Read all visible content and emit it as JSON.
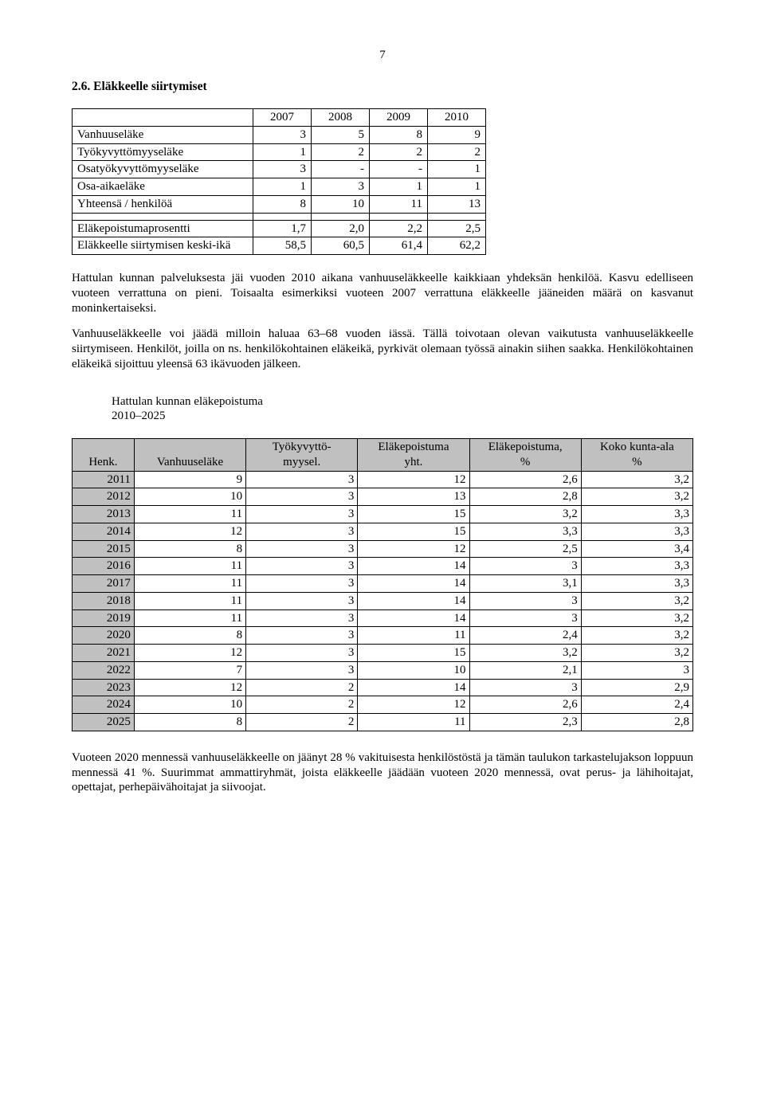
{
  "page_number": "7",
  "heading": "2.6. Eläkkeelle siirtymiset",
  "table1": {
    "header": [
      "",
      "2007",
      "2008",
      "2009",
      "2010"
    ],
    "rows_a": [
      [
        "Vanhuuseläke",
        "3",
        "5",
        "8",
        "9"
      ],
      [
        "Työkyvyttömyyseläke",
        "1",
        "2",
        "2",
        "2"
      ],
      [
        "Osatyökyvyttömyyseläke",
        "3",
        "-",
        "-",
        "1"
      ],
      [
        "Osa-aikaeläke",
        "1",
        "3",
        "1",
        "1"
      ],
      [
        "Yhteensä / henkilöä",
        "8",
        "10",
        "11",
        "13"
      ]
    ],
    "rows_b": [
      [
        "Eläkepoistumaprosentti",
        "1,7",
        "2,0",
        "2,2",
        "2,5"
      ],
      [
        "Eläkkeelle siirtymisen keski-ikä",
        "58,5",
        "60,5",
        "61,4",
        "62,2"
      ]
    ]
  },
  "para1": "Hattulan kunnan palveluksesta jäi vuoden 2010 aikana vanhuuseläkkeelle kaikkiaan yhdeksän henkilöä. Kasvu edelliseen vuoteen verrattuna on pieni. Toisaalta esimerkiksi vuoteen 2007 verrattuna eläkkeelle jääneiden määrä on kasvanut moninkertaiseksi.",
  "para2": "Vanhuuseläkkeelle voi jäädä milloin haluaa 63–68 vuoden iässä. Tällä toivotaan olevan vaikutusta vanhuuseläkkeelle siirtymiseen.  Henkilöt, joilla on ns. henkilökohtainen eläkeikä, pyrkivät olemaan työssä ainakin siihen saakka.  Henkilökohtainen eläkeikä sijoittuu yleensä 63 ikävuoden jälkeen.",
  "subheading_l1": "Hattulan kunnan eläkepoistuma",
  "subheading_l2": "2010–2025",
  "table2": {
    "header": [
      "Henk.",
      "Vanhuuseläke",
      "Työkyvyttö-\nmyysel.",
      "Eläkepoistuma\nyht.",
      "Eläkepoistuma,\n%",
      "Koko kunta-ala\n%"
    ],
    "rows": [
      [
        "2011",
        "9",
        "3",
        "12",
        "2,6",
        "3,2"
      ],
      [
        "2012",
        "10",
        "3",
        "13",
        "2,8",
        "3,2"
      ],
      [
        "2013",
        "11",
        "3",
        "15",
        "3,2",
        "3,3"
      ],
      [
        "2014",
        "12",
        "3",
        "15",
        "3,3",
        "3,3"
      ],
      [
        "2015",
        "8",
        "3",
        "12",
        "2,5",
        "3,4"
      ],
      [
        "2016",
        "11",
        "3",
        "14",
        "3",
        "3,3"
      ],
      [
        "2017",
        "11",
        "3",
        "14",
        "3,1",
        "3,3"
      ],
      [
        "2018",
        "11",
        "3",
        "14",
        "3",
        "3,2"
      ],
      [
        "2019",
        "11",
        "3",
        "14",
        "3",
        "3,2"
      ],
      [
        "2020",
        "8",
        "3",
        "11",
        "2,4",
        "3,2"
      ],
      [
        "2021",
        "12",
        "3",
        "15",
        "3,2",
        "3,2"
      ],
      [
        "2022",
        "7",
        "3",
        "10",
        "2,1",
        "3"
      ],
      [
        "2023",
        "12",
        "2",
        "14",
        "3",
        "2,9"
      ],
      [
        "2024",
        "10",
        "2",
        "12",
        "2,6",
        "2,4"
      ],
      [
        "2025",
        "8",
        "2",
        "11",
        "2,3",
        "2,8"
      ]
    ]
  },
  "para3": "Vuoteen 2020 mennessä vanhuuseläkkeelle on jäänyt 28 % vakituisesta henkilöstöstä ja tämän taulukon tarkastelujakson loppuun mennessä 41 %. Suurimmat ammattiryhmät, joista eläkkeelle jäädään vuoteen 2020 mennessä, ovat perus- ja lähihoitajat, opettajat, perhepäivähoitajat ja siivoojat."
}
